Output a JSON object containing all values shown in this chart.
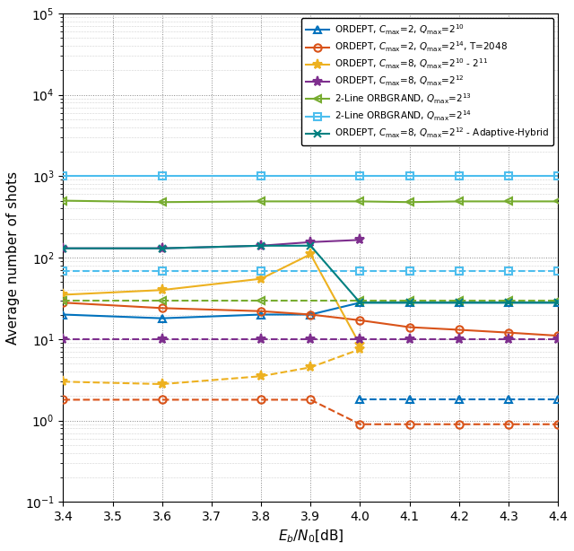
{
  "xlabel": "$E_b/N_0$[dB]",
  "ylabel": "Average number of shots",
  "xlim": [
    3.4,
    4.4
  ],
  "ylim": [
    0.1,
    100000
  ],
  "x_ticks": [
    3.4,
    3.5,
    3.6,
    3.7,
    3.8,
    3.9,
    4.0,
    4.1,
    4.2,
    4.3,
    4.4
  ],
  "figsize": [
    6.4,
    6.14
  ],
  "dpi": 100,
  "series": [
    {
      "label": "ORDEPT, $C_{\\mathrm{max}}$=2, $Q_{\\mathrm{max}}$=$2^{10}$",
      "color": "#0072BD",
      "marker": "^",
      "solid_x": [
        3.4,
        3.6,
        3.8,
        3.9,
        4.0,
        4.1,
        4.2,
        4.3,
        4.4
      ],
      "solid_y": [
        20,
        18,
        20,
        20,
        28,
        28,
        28,
        28,
        28
      ],
      "dashed_x": [
        4.0,
        4.1,
        4.2,
        4.3,
        4.4
      ],
      "dashed_y": [
        1.8,
        1.8,
        1.8,
        1.8,
        1.8
      ]
    },
    {
      "label": "ORDEPT, $C_{\\mathrm{max}}$=2, $Q_{\\mathrm{max}}$=$2^{14}$, T=2048",
      "color": "#D95319",
      "marker": "o",
      "solid_x": [
        3.4,
        3.6,
        3.8,
        3.9,
        4.0,
        4.1,
        4.2,
        4.3,
        4.4
      ],
      "solid_y": [
        28,
        24,
        22,
        20,
        17,
        14,
        13,
        12,
        11
      ],
      "dashed_x": [
        3.4,
        3.6,
        3.8,
        3.9,
        4.0,
        4.1,
        4.2,
        4.3,
        4.4
      ],
      "dashed_y": [
        1.8,
        1.8,
        1.8,
        1.8,
        0.9,
        0.9,
        0.9,
        0.9,
        0.9
      ]
    },
    {
      "label": "ORDEPT, $C_{\\mathrm{max}}$=8, $Q_{\\mathrm{max}}$=$2^{10}$ - $2^{11}$",
      "color": "#EDB120",
      "marker": "*",
      "solid_x": [
        3.4,
        3.6,
        3.8,
        3.9,
        4.0
      ],
      "solid_y": [
        35,
        40,
        55,
        110,
        8.5
      ],
      "dashed_x": [
        3.4,
        3.6,
        3.8,
        3.9,
        4.0
      ],
      "dashed_y": [
        3.0,
        2.8,
        3.5,
        4.5,
        7.5
      ]
    },
    {
      "label": "ORDEPT, $C_{\\mathrm{max}}$=8, $Q_{\\mathrm{max}}$=$2^{12}$",
      "color": "#7E2F8E",
      "marker": "*",
      "solid_x": [
        3.4,
        3.6,
        3.8,
        3.9,
        4.0
      ],
      "solid_y": [
        130,
        130,
        140,
        155,
        165
      ],
      "dashed_x": [
        3.4,
        3.6,
        3.8,
        3.9,
        4.0,
        4.1,
        4.2,
        4.3,
        4.4
      ],
      "dashed_y": [
        10,
        10,
        10,
        10,
        10,
        10,
        10,
        10,
        10
      ]
    },
    {
      "label": "2-Line ORBGRAND, $Q_{\\mathrm{max}}$=$2^{13}$",
      "color": "#77AC30",
      "marker": "<",
      "solid_x": [
        3.4,
        3.6,
        3.8,
        4.0,
        4.1,
        4.2,
        4.3,
        4.4
      ],
      "solid_y": [
        500,
        480,
        490,
        490,
        480,
        490,
        490,
        490
      ],
      "dashed_x": [
        3.4,
        3.6,
        3.8,
        4.0,
        4.1,
        4.2,
        4.3,
        4.4
      ],
      "dashed_y": [
        30,
        30,
        30,
        30,
        30,
        30,
        30,
        30
      ]
    },
    {
      "label": "2-Line ORBGRAND, $Q_{\\mathrm{max}}$=$2^{14}$",
      "color": "#4DBEEE",
      "marker": "s",
      "solid_x": [
        3.4,
        3.6,
        3.8,
        4.0,
        4.1,
        4.2,
        4.3,
        4.4
      ],
      "solid_y": [
        1000,
        1000,
        1000,
        1000,
        1000,
        1000,
        1000,
        1000
      ],
      "dashed_x": [
        3.4,
        3.6,
        3.8,
        4.0,
        4.1,
        4.2,
        4.3,
        4.4
      ],
      "dashed_y": [
        68,
        68,
        68,
        68,
        68,
        68,
        68,
        68
      ]
    },
    {
      "label": "ORDEPT, $C_{\\mathrm{max}}$=8, $Q_{\\mathrm{max}}$=$2^{12}$ - Adaptive-Hybrid",
      "color": "#008080",
      "marker": "x",
      "solid_x": [
        3.4,
        3.6,
        3.8,
        3.9,
        4.0,
        4.1,
        4.2,
        4.3,
        4.4
      ],
      "solid_y": [
        130,
        130,
        140,
        140,
        28,
        28,
        28,
        28,
        28
      ],
      "dashed_x": [],
      "dashed_y": []
    }
  ]
}
